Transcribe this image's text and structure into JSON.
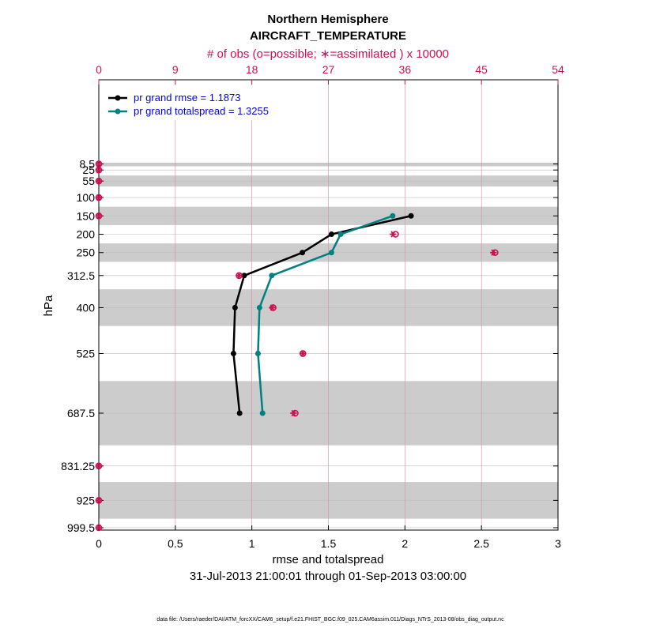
{
  "chart_data": {
    "type": "line",
    "title": "Northern Hemisphere",
    "subtitle": "AIRCRAFT_TEMPERATURE",
    "top_axis_label": "# of obs (o=possible; ∗=assimilated ) x 10000",
    "xlabel": "rmse and totalspread",
    "ylabel": "hPa",
    "date_range": "31-Jul-2013 21:00:01 through 01-Sep-2013 03:00:00",
    "footer": "data file: /Users/raeder/DAI/ATM_forcXX/CAM6_setup/f.e21.FHIST_BGC.f09_025.CAM6assim.011/Diags_NTrS_2013-08/obs_diag_output.nc",
    "xlim": [
      0,
      3
    ],
    "x_ticks": [
      0,
      0.5,
      1,
      1.5,
      2,
      2.5,
      3
    ],
    "x_tick_labels": [
      "0",
      "0.5",
      "1",
      "1.5",
      "2",
      "2.5",
      "3"
    ],
    "top_xlim": [
      0,
      54
    ],
    "top_ticks": [
      0,
      9,
      18,
      27,
      36,
      45,
      54
    ],
    "top_tick_labels": [
      "0",
      "9",
      "18",
      "27",
      "36",
      "45",
      "54"
    ],
    "levels": [
      8.5,
      25,
      55,
      100,
      150,
      200,
      250,
      312.5,
      400,
      525,
      687.5,
      831.25,
      925,
      999.5
    ],
    "level_labels": [
      "8.5",
      "25",
      "55",
      "100",
      "150",
      "200",
      "250",
      "312.5",
      "400",
      "525",
      "687.5",
      "831.25",
      "925",
      "999.5"
    ],
    "shaded_bands": [
      [
        5,
        15
      ],
      [
        40,
        70
      ],
      [
        125,
        175
      ],
      [
        225,
        275
      ],
      [
        350,
        450
      ],
      [
        600,
        775
      ],
      [
        875,
        975
      ]
    ],
    "series": [
      {
        "name": "pr grand rmse = 1.1873",
        "color": "#000000",
        "levels": [
          150,
          200,
          250,
          312.5,
          400,
          525,
          687.5
        ],
        "values": [
          2.04,
          1.52,
          1.33,
          0.95,
          0.89,
          0.88,
          0.92
        ]
      },
      {
        "name": "pr grand totalspread = 1.3255",
        "color": "#008080",
        "levels": [
          150,
          200,
          250,
          312.5,
          400,
          525,
          687.5
        ],
        "values": [
          1.92,
          1.58,
          1.52,
          1.13,
          1.05,
          1.04,
          1.07
        ]
      }
    ],
    "obs_counts": {
      "color": "#cc1155",
      "levels": [
        8.5,
        25,
        55,
        100,
        150,
        200,
        250,
        312.5,
        400,
        525,
        687.5,
        831.25,
        925,
        999.5
      ],
      "possible": [
        0,
        0,
        0,
        0,
        0,
        34.9,
        46.6,
        16.5,
        20.5,
        24.0,
        23.1,
        0,
        0,
        0
      ],
      "assimilated": [
        0,
        0,
        0,
        0,
        0,
        34.6,
        46.4,
        16.5,
        20.4,
        24.0,
        22.9,
        0,
        0,
        0
      ]
    }
  }
}
